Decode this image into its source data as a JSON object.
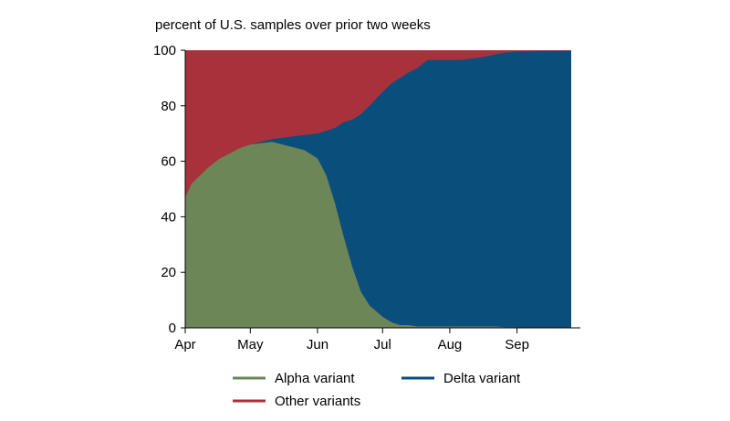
{
  "chart_data": {
    "type": "area",
    "stacked": true,
    "normalized_percent": true,
    "ylabel": "percent of U.S. samples over prior two weeks",
    "xlabel": "",
    "ylim": [
      0,
      100
    ],
    "yticks": [
      0,
      20,
      40,
      60,
      80,
      100
    ],
    "x_start": "2021-04-01",
    "x_end": "2021-09-26",
    "xticks": [
      {
        "date": "2021-04-01",
        "label": "Apr"
      },
      {
        "date": "2021-05-01",
        "label": "May"
      },
      {
        "date": "2021-06-01",
        "label": "Jun"
      },
      {
        "date": "2021-07-01",
        "label": "Jul"
      },
      {
        "date": "2021-08-01",
        "label": "Aug"
      },
      {
        "date": "2021-09-01",
        "label": "Sep"
      }
    ],
    "grid": false,
    "legend_position": "bottom",
    "dates": [
      "2021-04-01",
      "2021-04-04",
      "2021-04-08",
      "2021-04-12",
      "2021-04-17",
      "2021-04-22",
      "2021-04-27",
      "2021-05-01",
      "2021-05-06",
      "2021-05-11",
      "2021-05-16",
      "2021-05-21",
      "2021-05-26",
      "2021-06-01",
      "2021-06-05",
      "2021-06-09",
      "2021-06-13",
      "2021-06-17",
      "2021-06-21",
      "2021-06-25",
      "2021-07-01",
      "2021-07-05",
      "2021-07-09",
      "2021-07-13",
      "2021-07-17",
      "2021-07-20",
      "2021-07-22",
      "2021-07-24",
      "2021-07-27",
      "2021-08-01",
      "2021-08-06",
      "2021-08-11",
      "2021-08-16",
      "2021-08-22",
      "2021-08-27",
      "2021-09-01",
      "2021-09-06",
      "2021-09-11",
      "2021-09-16",
      "2021-09-21",
      "2021-09-26"
    ],
    "series": [
      {
        "name": "Alpha variant",
        "color": "#6c8658",
        "values": [
          47,
          52,
          55,
          58,
          61,
          63,
          65,
          66,
          66.5,
          67,
          66,
          65,
          64,
          61,
          55,
          45,
          33,
          22,
          13,
          8,
          4,
          2,
          1,
          1,
          0.5,
          0.5,
          0.5,
          0.5,
          0.5,
          0.5,
          0.5,
          0.5,
          0.5,
          0.5,
          0.2,
          0.2,
          0.1,
          0.1,
          0.1,
          0,
          0
        ]
      },
      {
        "name": "Delta variant",
        "color": "#0a4f7c",
        "values": [
          0,
          0,
          0,
          0,
          0,
          0,
          0,
          0,
          0.5,
          1,
          2.5,
          4,
          5.5,
          9,
          16,
          27,
          41,
          53,
          64,
          72,
          81,
          86,
          89,
          91,
          93,
          95,
          96,
          96,
          96,
          96,
          96,
          96.5,
          97,
          98,
          99,
          99.3,
          99.5,
          99.6,
          99.7,
          99.8,
          99.8
        ]
      },
      {
        "name": "Other variants",
        "color": "#a8323c",
        "values": [
          53,
          48,
          45,
          42,
          39,
          37,
          35,
          34,
          33,
          32,
          31.5,
          31,
          30.5,
          30,
          29,
          28,
          26,
          25,
          23,
          20,
          15,
          12,
          10,
          8,
          6.5,
          4.5,
          3.5,
          3.5,
          3.5,
          3.5,
          3.5,
          3,
          2.5,
          1.5,
          0.8,
          0.5,
          0.4,
          0.3,
          0.2,
          0.2,
          0.2
        ]
      }
    ]
  }
}
